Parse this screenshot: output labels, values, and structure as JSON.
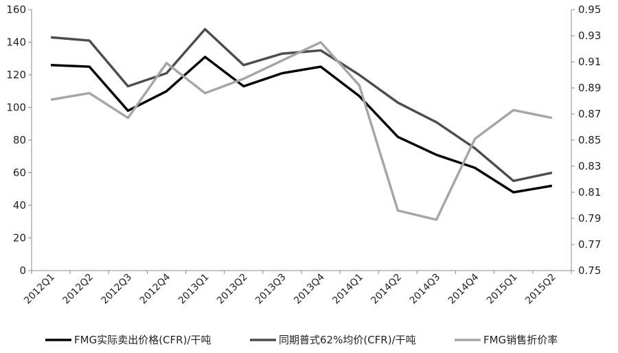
{
  "chart_data": {
    "type": "line",
    "title": "",
    "categories": [
      "2012Q1",
      "2012Q2",
      "2012Q3",
      "2012Q4",
      "2013Q1",
      "2013Q2",
      "2013Q3",
      "2013Q4",
      "2014Q1",
      "2014Q2",
      "2014Q3",
      "2014Q4",
      "2015Q1",
      "2015Q2"
    ],
    "y_left": {
      "ylim": [
        0,
        160
      ],
      "ticks": [
        "0",
        "20",
        "40",
        "60",
        "80",
        "100",
        "120",
        "140",
        "160"
      ],
      "label": ""
    },
    "y_right": {
      "ylim": [
        0.75,
        0.95
      ],
      "ticks": [
        "0.75",
        "0.77",
        "0.79",
        "0.81",
        "0.83",
        "0.85",
        "0.87",
        "0.89",
        "0.91",
        "0.93",
        "0.95"
      ],
      "label": ""
    },
    "grid": false,
    "legend_position": "bottom",
    "series": [
      {
        "name": "FMG实际卖出价格(CFR)/干吨",
        "axis": "left",
        "color": "#000000",
        "values": [
          126,
          125,
          98,
          110,
          131,
          113,
          121,
          125,
          107,
          82,
          71,
          63,
          48,
          52
        ]
      },
      {
        "name": "同期普式62%均价(CFR)/干吨",
        "axis": "left",
        "color": "#4d4d4d",
        "values": [
          143,
          141,
          113,
          121,
          148,
          126,
          133,
          135,
          120,
          103,
          91,
          75,
          55,
          60
        ]
      },
      {
        "name": "FMG销售折价率",
        "axis": "right",
        "color": "#a6a6a6",
        "values": [
          0.881,
          0.886,
          0.867,
          0.909,
          0.886,
          0.897,
          0.911,
          0.925,
          0.892,
          0.796,
          0.789,
          0.851,
          0.873,
          0.867
        ]
      }
    ]
  }
}
